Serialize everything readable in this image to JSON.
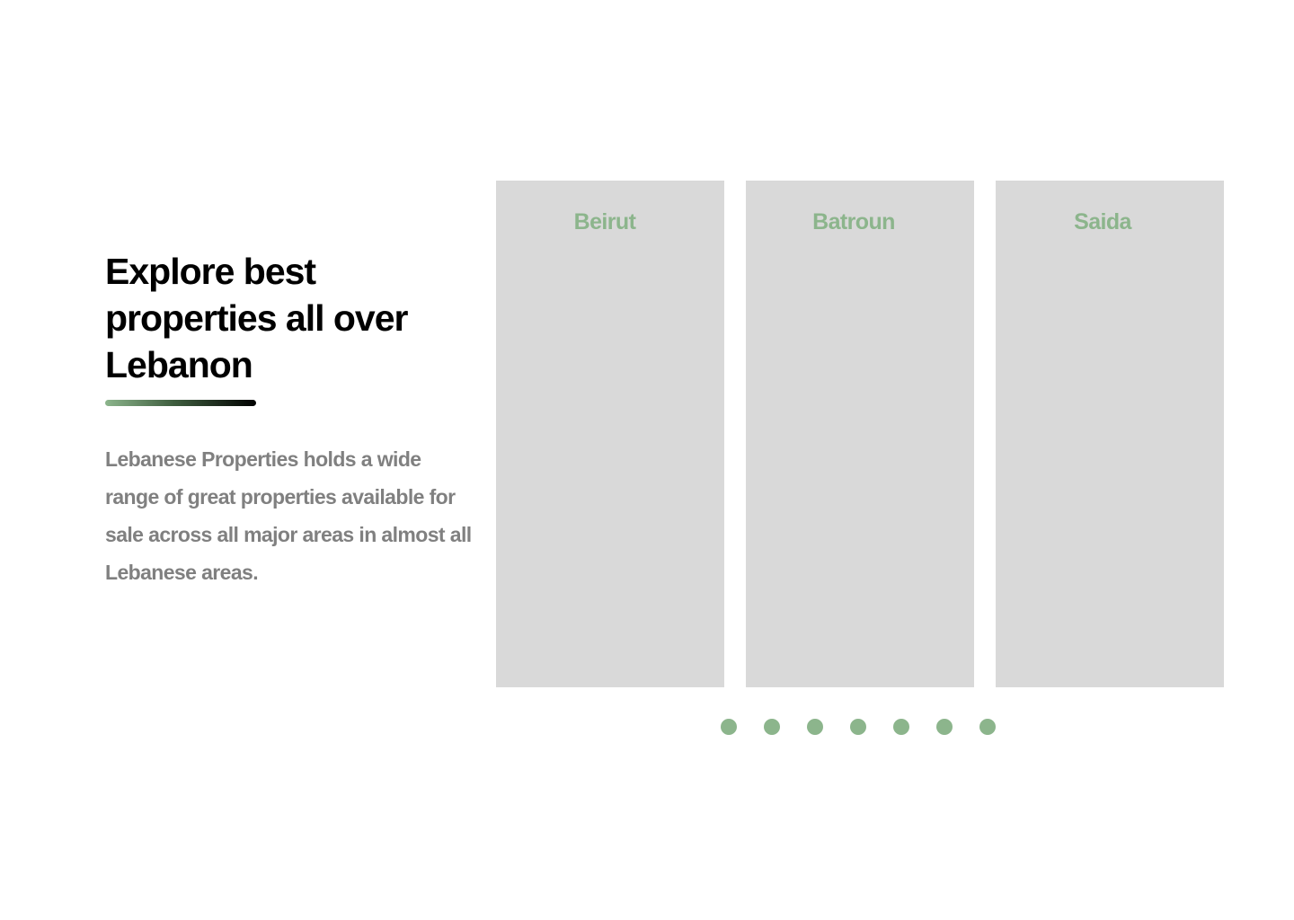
{
  "hero": {
    "headline": "Explore best properties all over Lebanon",
    "description": "Lebanese Properties holds a wide range of great properties available for sale across all major areas in almost all Lebanese areas."
  },
  "carousel": {
    "cards": [
      {
        "label": "Beirut"
      },
      {
        "label": "Batroun"
      },
      {
        "label": "Saida"
      }
    ],
    "dot_count": 7
  },
  "colors": {
    "accent": "#8cb58c",
    "card_background": "#d9d9d9",
    "headline_text": "#000000",
    "body_text": "#808080",
    "page_background": "#ffffff"
  }
}
